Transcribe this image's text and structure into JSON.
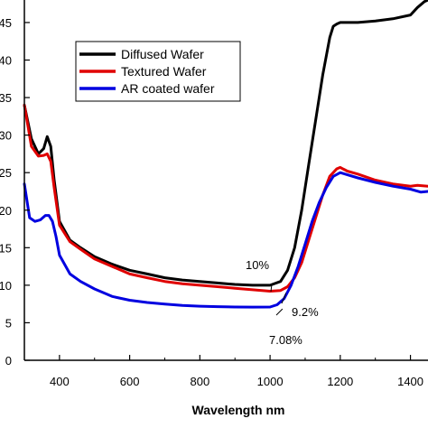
{
  "chart_data": {
    "type": "line",
    "title": "",
    "xlabel": "Wavelength nm",
    "ylabel": "",
    "xlim": [
      300,
      1450
    ],
    "ylim": [
      0,
      48
    ],
    "x_ticks": [
      400,
      600,
      800,
      1000,
      1200,
      1400
    ],
    "y_ticks": [
      0,
      5,
      10,
      15,
      20,
      25,
      30,
      35,
      40,
      45
    ],
    "y_tick_labels": [
      "0",
      "5",
      "10",
      "15",
      "20",
      "25",
      "30",
      "35",
      "40",
      "45"
    ],
    "grid": false,
    "legend_position": "top-left",
    "series": [
      {
        "name": "Diffused Wafer",
        "color": "#000000",
        "x": [
          300,
          320,
          340,
          355,
          365,
          375,
          385,
          400,
          430,
          460,
          500,
          550,
          600,
          650,
          700,
          750,
          800,
          850,
          900,
          950,
          1000,
          1030,
          1050,
          1070,
          1090,
          1110,
          1130,
          1150,
          1170,
          1180,
          1190,
          1200,
          1250,
          1300,
          1350,
          1400,
          1420,
          1440,
          1450
        ],
        "y": [
          34,
          29.5,
          27.5,
          28.2,
          29.8,
          28.5,
          24,
          18.5,
          16,
          15,
          13.8,
          12.8,
          12,
          11.5,
          11,
          10.7,
          10.5,
          10.3,
          10.1,
          10,
          10,
          10.5,
          12,
          15,
          20,
          26,
          32,
          38,
          43,
          44.5,
          44.8,
          45,
          45,
          45.2,
          45.5,
          46,
          47,
          47.8,
          48
        ]
      },
      {
        "name": "Textured Wafer",
        "color": "#e00000",
        "x": [
          300,
          320,
          340,
          355,
          365,
          375,
          385,
          400,
          430,
          460,
          500,
          550,
          600,
          650,
          700,
          750,
          800,
          850,
          900,
          950,
          1000,
          1030,
          1050,
          1070,
          1090,
          1110,
          1130,
          1150,
          1170,
          1190,
          1200,
          1220,
          1250,
          1300,
          1350,
          1400,
          1420,
          1450
        ],
        "y": [
          34,
          28.5,
          27.2,
          27.3,
          27.5,
          26.5,
          23,
          18,
          15.8,
          14.8,
          13.5,
          12.5,
          11.5,
          11,
          10.5,
          10.2,
          10,
          9.8,
          9.6,
          9.4,
          9.2,
          9.3,
          9.8,
          11,
          13,
          16,
          19,
          22,
          24.5,
          25.5,
          25.7,
          25.2,
          24.8,
          24,
          23.5,
          23.2,
          23.3,
          23.2
        ]
      },
      {
        "name": "AR coated wafer",
        "color": "#0000e0",
        "x": [
          300,
          315,
          330,
          345,
          360,
          370,
          380,
          390,
          400,
          430,
          460,
          500,
          550,
          600,
          650,
          700,
          750,
          800,
          850,
          900,
          950,
          1000,
          1020,
          1040,
          1060,
          1080,
          1100,
          1120,
          1140,
          1160,
          1180,
          1200,
          1250,
          1300,
          1350,
          1400,
          1430,
          1450
        ],
        "y": [
          23.5,
          19,
          18.5,
          18.7,
          19.3,
          19.3,
          18.5,
          16.5,
          14,
          11.5,
          10.5,
          9.5,
          8.5,
          8,
          7.7,
          7.5,
          7.3,
          7.2,
          7.15,
          7.1,
          7.08,
          7.1,
          7.4,
          8.2,
          10,
          12.5,
          15.5,
          18.5,
          21,
          23,
          24.5,
          25,
          24.3,
          23.7,
          23.2,
          22.8,
          22.4,
          22.5
        ]
      }
    ],
    "annotations": [
      {
        "text": "10%",
        "x": 1000,
        "y": 10
      },
      {
        "text": "9.2%",
        "x": 1030,
        "y": 9.2
      },
      {
        "text": "7.08%",
        "x": 1020,
        "y": 7.08
      }
    ]
  }
}
